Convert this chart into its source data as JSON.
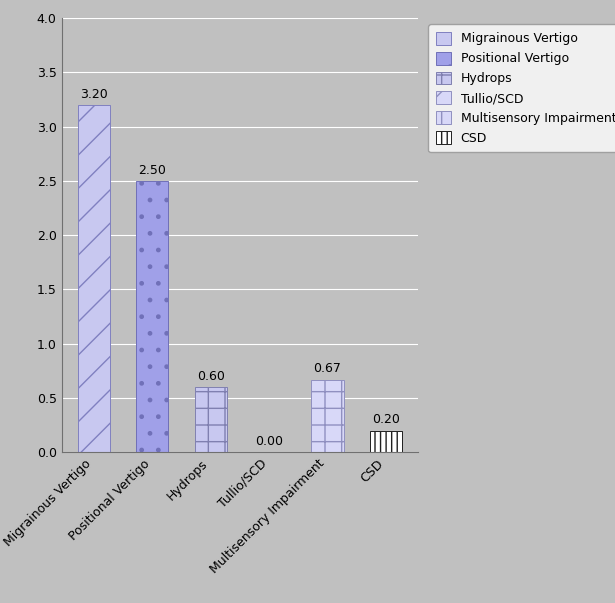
{
  "categories": [
    "Migrainous Vertigo",
    "Positional Vertigo",
    "Hydrops",
    "Tullio/SCD",
    "Multisensory Impairment",
    "CSD"
  ],
  "values": [
    3.2,
    2.5,
    0.6,
    0.0,
    0.67,
    0.2
  ],
  "hatches": [
    "/",
    ".",
    "+",
    "/",
    "+",
    "|||"
  ],
  "face_colors": [
    "#c8c8f0",
    "#a0a0e8",
    "#c8c8f0",
    "#d8d8f8",
    "#d8d8f8",
    "#ffffff"
  ],
  "edge_colors": [
    "#8080c0",
    "#7070b8",
    "#8080b0",
    "#9090c0",
    "#9090c0",
    "#202020"
  ],
  "legend_labels": [
    "Migrainous Vertigo",
    "Positional Vertigo",
    "Hydrops",
    "Tullio/SCD",
    "Multisensory Impairment",
    "CSD"
  ],
  "legend_hatches": [
    "/",
    ".",
    "+",
    "/",
    "+",
    "|||"
  ],
  "legend_face_colors": [
    "#c8c8f0",
    "#a0a0e8",
    "#c8c8f0",
    "#d8d8f8",
    "#d8d8f8",
    "#ffffff"
  ],
  "legend_edge_colors": [
    "#8080c0",
    "#7070b8",
    "#8080b0",
    "#9090c0",
    "#9090c0",
    "#202020"
  ],
  "ylim": [
    0,
    4.0
  ],
  "yticks": [
    0.0,
    0.5,
    1.0,
    1.5,
    2.0,
    2.5,
    3.0,
    3.5,
    4.0
  ],
  "background_color": "#c0c0c0",
  "plot_bg_color": "#c0c0c0",
  "bar_width": 0.55,
  "value_label_fontsize": 9,
  "tick_fontsize": 9,
  "legend_fontsize": 9
}
